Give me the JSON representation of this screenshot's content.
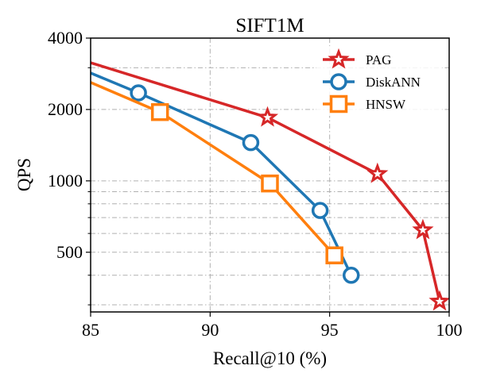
{
  "chart_data": {
    "type": "line",
    "title": "SIFT1M",
    "xlabel": "Recall@10 (%)",
    "ylabel": "QPS",
    "xlim": [
      85,
      100
    ],
    "ylim": [
      280,
      4000
    ],
    "yscale": "log",
    "x_ticks": [
      85,
      90,
      95,
      100
    ],
    "x_tick_labels": [
      "85",
      "90",
      "95",
      "100"
    ],
    "y_ticks": [
      500,
      1000,
      2000,
      4000
    ],
    "y_tick_labels": [
      "500",
      "1000",
      "2000",
      "4000"
    ],
    "y_minor_ticks": [
      300,
      400,
      600,
      700,
      800,
      900,
      3000
    ],
    "grid": true,
    "legend_position": "top-right",
    "series": [
      {
        "name": "PAG",
        "color": "#d62728",
        "marker": "star",
        "x": [
          85.0,
          92.4,
          97.0,
          98.9,
          99.6
        ],
        "y": [
          3150,
          1850,
          1070,
          620,
          310
        ]
      },
      {
        "name": "DiskANN",
        "color": "#1f77b4",
        "marker": "circle",
        "x": [
          85.0,
          87.0,
          91.7,
          94.6,
          95.9
        ],
        "y": [
          2850,
          2350,
          1450,
          750,
          400
        ]
      },
      {
        "name": "HNSW",
        "color": "#ff7f0e",
        "marker": "square",
        "x": [
          85.0,
          87.9,
          92.5,
          95.2
        ],
        "y": [
          2600,
          1950,
          975,
          485
        ]
      }
    ]
  }
}
